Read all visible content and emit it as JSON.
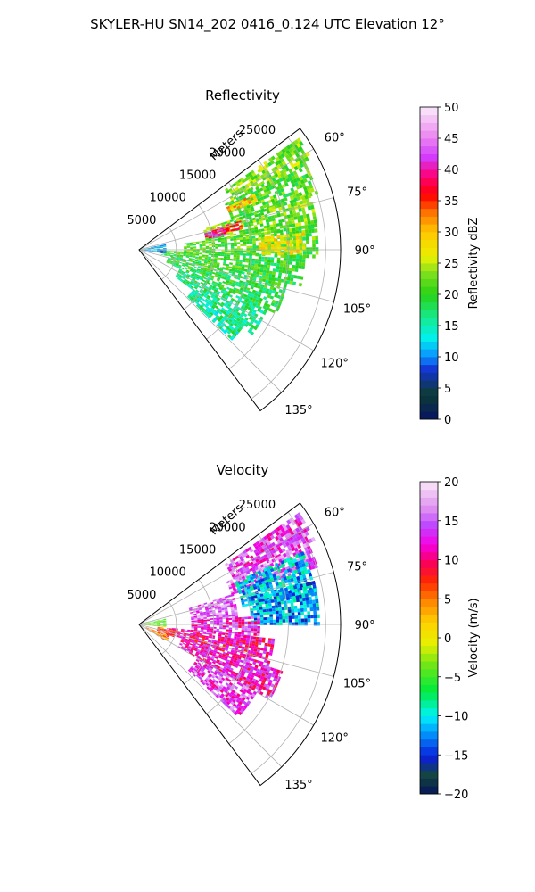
{
  "figure_title": "SKYLER-HU  SN14_202  0416_0.124 UTC Elevation 12°",
  "chart_data": [
    {
      "type": "heatmap",
      "projection": "polar-sector",
      "title": "Reflectivity",
      "radial_label": "Meters",
      "radial_ticks": [
        5000,
        10000,
        15000,
        20000,
        25000
      ],
      "radial_tick_labels": [
        "5000",
        "10000",
        "15000",
        "20000",
        "25000"
      ],
      "rlim": [
        0,
        27000
      ],
      "theta_range_deg": [
        53,
        143
      ],
      "theta_ticks": [
        60,
        75,
        90,
        105,
        120,
        135
      ],
      "theta_tick_labels": [
        "60°",
        "75°",
        "90°",
        "105°",
        "120°",
        "135°"
      ],
      "grid": true,
      "colorbar": {
        "label": "Reflectivity dBZ",
        "range": [
          0,
          50
        ],
        "ticks": [
          0,
          5,
          10,
          15,
          20,
          25,
          30,
          35,
          40,
          45,
          50
        ],
        "tick_labels": [
          "0",
          "5",
          "10",
          "15",
          "20",
          "25",
          "30",
          "35",
          "40",
          "45",
          "50"
        ],
        "colormap": "pyart_HomeyerRainbow"
      },
      "echo_regions": [
        {
          "az": [
            55,
            62
          ],
          "r": [
            14000,
            26000
          ],
          "value": 23
        },
        {
          "az": [
            62,
            72
          ],
          "r": [
            13000,
            25000
          ],
          "value": 21
        },
        {
          "az": [
            64,
            67
          ],
          "r": [
            13000,
            17000
          ],
          "value": 30
        },
        {
          "az": [
            72,
            82
          ],
          "r": [
            9000,
            24000
          ],
          "value": 22
        },
        {
          "az": [
            74,
            78
          ],
          "r": [
            10000,
            14000
          ],
          "value": 36
        },
        {
          "az": [
            76,
            80
          ],
          "r": [
            9000,
            12000
          ],
          "value": 40
        },
        {
          "az": [
            82,
            92
          ],
          "r": [
            6000,
            24000
          ],
          "value": 21
        },
        {
          "az": [
            84,
            92
          ],
          "r": [
            16000,
            22000
          ],
          "value": 27
        },
        {
          "az": [
            92,
            102
          ],
          "r": [
            3000,
            22000
          ],
          "value": 20
        },
        {
          "az": [
            102,
            115
          ],
          "r": [
            4000,
            20000
          ],
          "value": 19
        },
        {
          "az": [
            115,
            126
          ],
          "r": [
            6000,
            19000
          ],
          "value": 17
        },
        {
          "az": [
            126,
            134
          ],
          "r": [
            9000,
            17000
          ],
          "value": 16
        },
        {
          "az": [
            78,
            98
          ],
          "r": [
            300,
            3500
          ],
          "value": 11
        }
      ]
    },
    {
      "type": "heatmap",
      "projection": "polar-sector",
      "title": "Velocity",
      "radial_label": "Meters",
      "radial_ticks": [
        5000,
        10000,
        15000,
        20000,
        25000
      ],
      "radial_tick_labels": [
        "5000",
        "10000",
        "15000",
        "20000",
        "25000"
      ],
      "rlim": [
        0,
        27000
      ],
      "theta_range_deg": [
        53,
        143
      ],
      "theta_ticks": [
        60,
        75,
        90,
        105,
        120,
        135
      ],
      "theta_tick_labels": [
        "60°",
        "75°",
        "90°",
        "105°",
        "120°",
        "135°"
      ],
      "grid": true,
      "colorbar": {
        "label": "Velocity (m/s)",
        "range": [
          -20,
          20
        ],
        "ticks": [
          -20,
          -15,
          -10,
          -5,
          0,
          5,
          10,
          15,
          20
        ],
        "tick_labels": [
          "−20",
          "−15",
          "−10",
          "−5",
          "0",
          "5",
          "10",
          "15",
          "20"
        ],
        "colormap": "pyart_BuDRd18"
      },
      "echo_regions": [
        {
          "az": [
            55,
            64
          ],
          "r": [
            14000,
            26000
          ],
          "value": 14
        },
        {
          "az": [
            64,
            72
          ],
          "r": [
            13000,
            25000
          ],
          "value": 15
        },
        {
          "az": [
            66,
            80
          ],
          "r": [
            14000,
            24000
          ],
          "value": -11
        },
        {
          "az": [
            76,
            90
          ],
          "r": [
            15000,
            24000
          ],
          "value": -12
        },
        {
          "az": [
            72,
            86
          ],
          "r": [
            7000,
            13000
          ],
          "value": 15
        },
        {
          "az": [
            86,
            96
          ],
          "r": [
            7000,
            16000
          ],
          "value": 13
        },
        {
          "az": [
            96,
            108
          ],
          "r": [
            4000,
            18000
          ],
          "value": 11
        },
        {
          "az": [
            108,
            120
          ],
          "r": [
            6000,
            20000
          ],
          "value": 12
        },
        {
          "az": [
            120,
            132
          ],
          "r": [
            9000,
            18000
          ],
          "value": 14
        },
        {
          "az": [
            98,
            110
          ],
          "r": [
            2500,
            5000
          ],
          "value": 7
        },
        {
          "az": [
            110,
            122
          ],
          "r": [
            1000,
            4000
          ],
          "value": 5
        },
        {
          "az": [
            78,
            96
          ],
          "r": [
            300,
            3500
          ],
          "value": -4
        }
      ]
    }
  ]
}
